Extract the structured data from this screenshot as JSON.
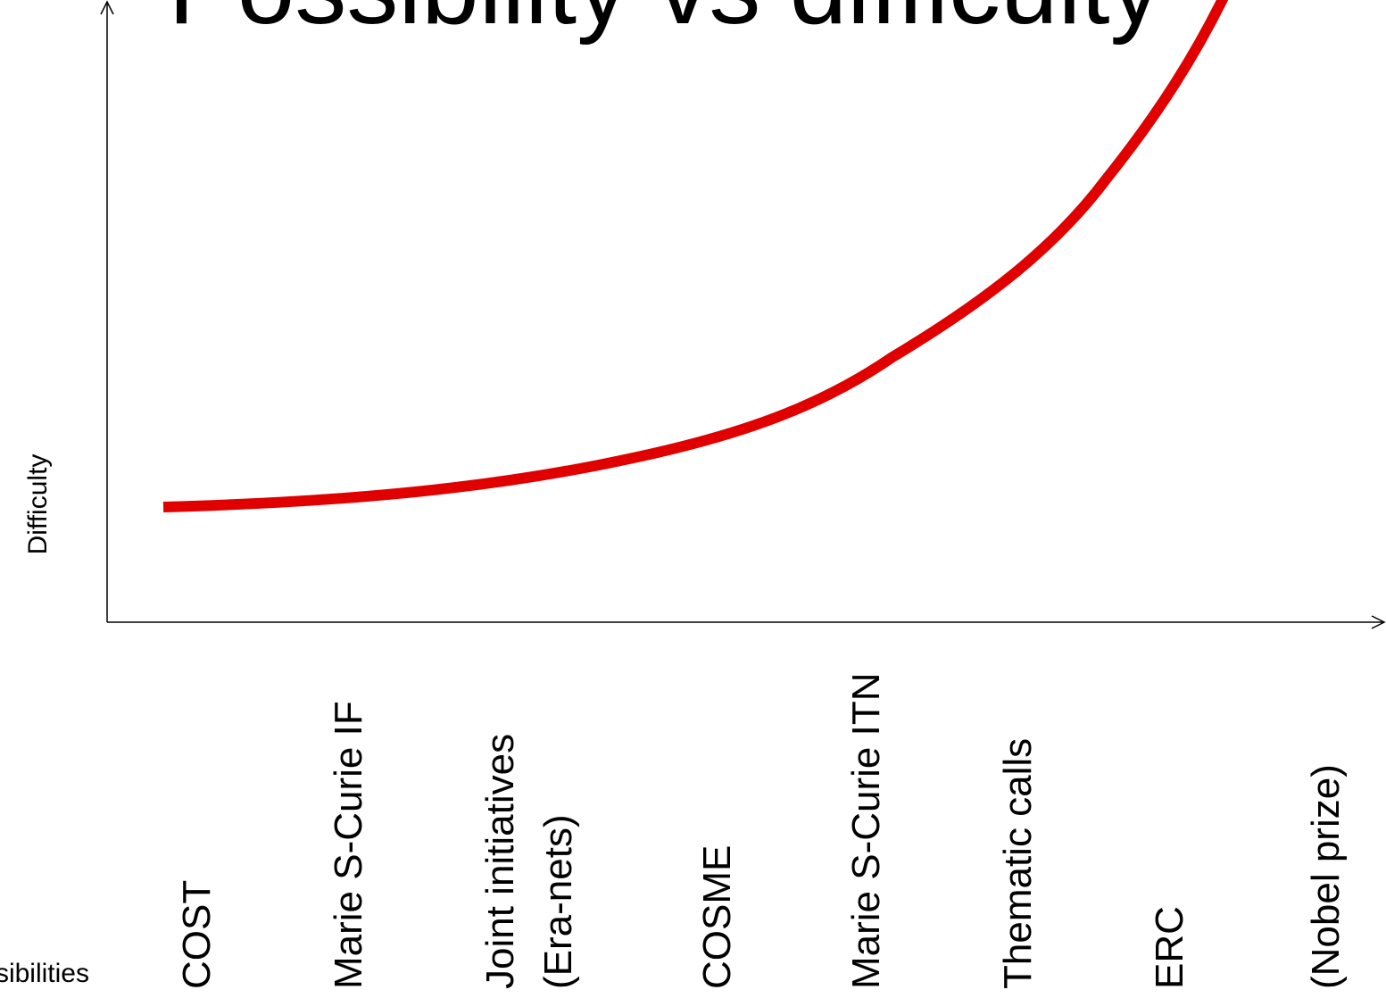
{
  "title": "Possibility vs difficulty",
  "y_axis_label": "Difficulty",
  "x_axis_label": "Possibilities",
  "categories": [
    "COST",
    "Marie S-Curie IF",
    [
      "Joint initiatives",
      "(Era-nets)"
    ],
    "COSME",
    "Marie S-Curie ITN",
    "Thematic calls",
    "ERC",
    "(Nobel prize)"
  ]
}
